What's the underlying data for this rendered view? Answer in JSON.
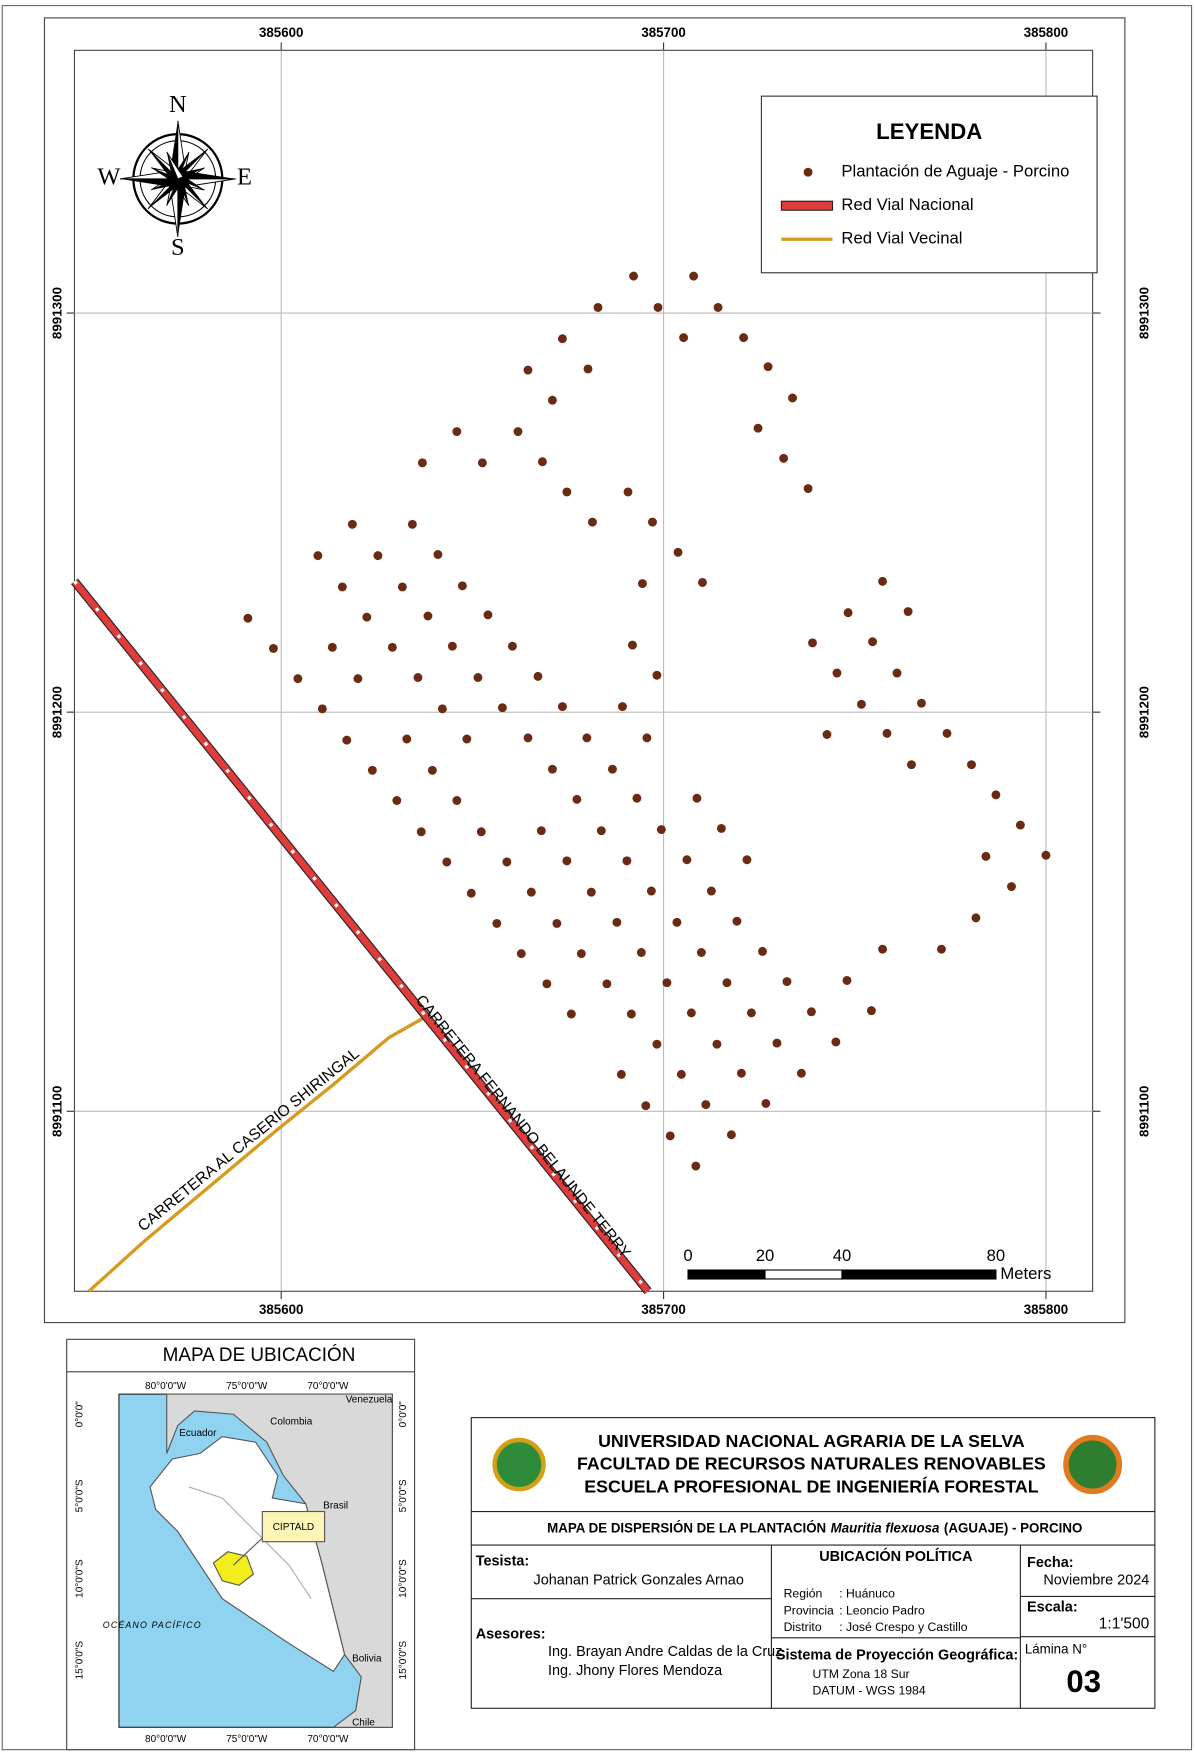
{
  "map": {
    "xticks": [
      385600,
      385700,
      385800
    ],
    "yticks": [
      8991300,
      8991200,
      8991100
    ],
    "compass": {
      "n": "N",
      "s": "S",
      "e": "E",
      "w": "W"
    },
    "legend": {
      "title": "LEYENDA",
      "items": [
        "Plantación de Aguaje - Porcino",
        "Red Vial Nacional",
        "Red Vial Vecinal"
      ]
    },
    "road_labels": [
      "CARRETERA FERNANDO BELAUNDE TERRY",
      "CARRETERA AL CASERIO SHIRINGAL"
    ],
    "scale_bar": {
      "ticks": [
        0,
        20,
        40,
        80
      ],
      "unit": "Meters"
    }
  },
  "location_map": {
    "title": "MAPA DE UBICACIÓN",
    "lon_labels": [
      "80°0'0\"W",
      "75°0'0\"W",
      "70°0'0\"W"
    ],
    "lat_labels": [
      "0°0'0\"",
      "5°0'0\"S",
      "10°0'0\"S",
      "15°0'0\"S"
    ],
    "places": {
      "ecuador": "Ecuador",
      "colombia": "Colombia",
      "venezuela": "Venezuela",
      "brasil": "Brasil",
      "bolivia": "Bolivia",
      "chile": "Chile",
      "ocean": "OCÉANO PACÍFICO",
      "site": "CIPTALD"
    }
  },
  "title_block": {
    "institution": [
      "UNIVERSIDAD NACIONAL AGRARIA DE LA SELVA",
      "FACULTAD DE RECURSOS NATURALES RENOVABLES",
      "ESCUELA PROFESIONAL DE INGENIERÍA FORESTAL"
    ],
    "map_title": [
      "MAPA DE DISPERSIÓN DE LA PLANTACIÓN",
      "Mauritia flexuosa",
      "(AGUAJE) - PORCINO"
    ],
    "tesista_label": "Tesista:",
    "tesista": "Johanan Patrick Gonzales Arnao",
    "asesores_label": "Asesores:",
    "asesores": [
      "Ing. Brayan Andre Caldas de la Cruz",
      "Ing. Jhony Flores Mendoza"
    ],
    "ubicacion_title": "UBICACIÓN POLÍTICA",
    "ubicacion": [
      [
        "Región",
        ": Huánuco"
      ],
      [
        "Provincia",
        ": Leoncio Padro"
      ],
      [
        "Distrito",
        ": José Crespo y Castillo"
      ]
    ],
    "sistema_title": "Sistema de Proyección Geográfica:",
    "sistema": [
      "UTM Zona 18 Sur",
      "DATUM - WGS 1984"
    ],
    "fecha_label": "Fecha:",
    "fecha": "Noviembre 2024",
    "escala_label": "Escala:",
    "escala": "1:1'500",
    "lamina_label": "Lámina N°",
    "lamina": "03"
  }
}
